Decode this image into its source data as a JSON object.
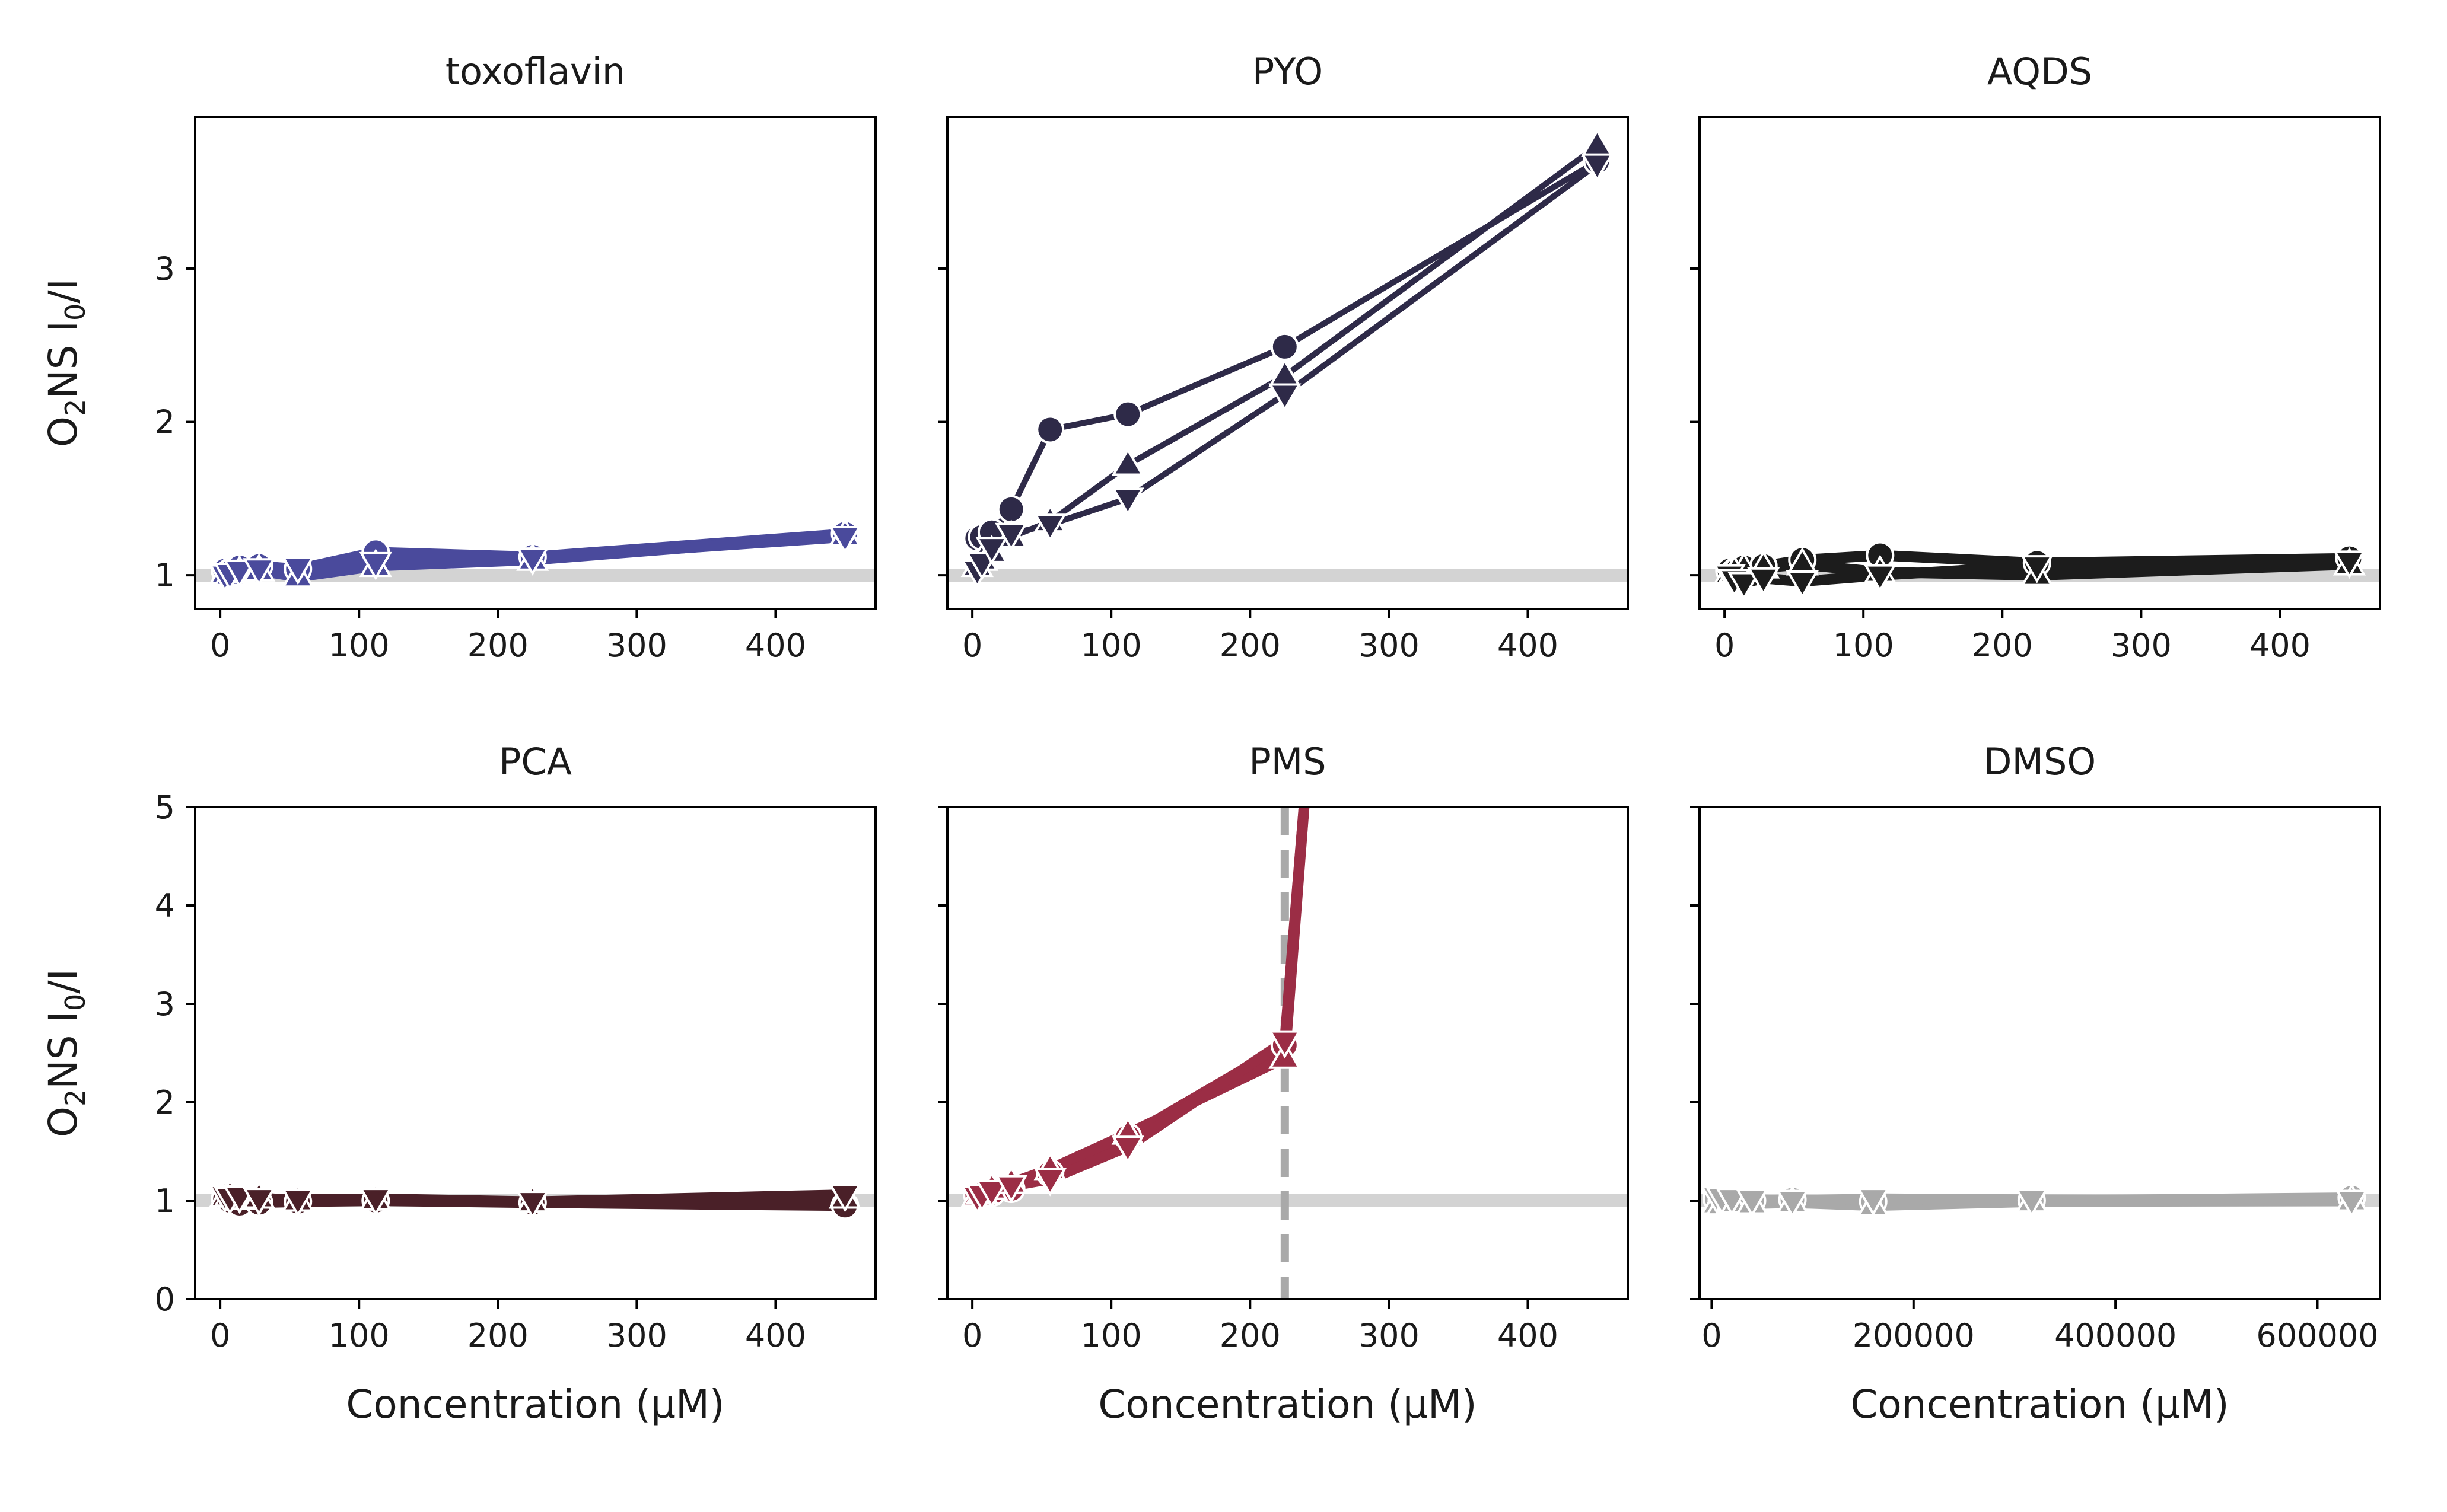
{
  "figure": {
    "ylabel_prefix": "O",
    "ylabel_sub1": "2",
    "ylabel_mid": "NS I",
    "ylabel_sub2": "0",
    "ylabel_suffix": "/I",
    "xlabel": "Concentration (μM)",
    "reference_line_y": 1,
    "reference_line_color": "#d3d3d3"
  },
  "chart_data": [
    {
      "type": "line",
      "title": "toxoflavin",
      "color": "#4a4a9c",
      "xlim": [
        -18,
        472
      ],
      "ylim": [
        0.78,
        3.99
      ],
      "xticks": [
        0,
        100,
        200,
        300,
        400
      ],
      "yticks": [
        1,
        2,
        3
      ],
      "series": [
        {
          "marker": "circle",
          "x": [
            3.5,
            7,
            14,
            28,
            56,
            112,
            225,
            450
          ],
          "y": [
            1.03,
            1.02,
            1.05,
            1.06,
            1.04,
            1.15,
            1.12,
            1.27
          ]
        },
        {
          "marker": "triangle-up",
          "x": [
            3.5,
            7,
            14,
            28,
            56,
            112,
            225,
            450
          ],
          "y": [
            1.01,
            1.0,
            1.02,
            1.03,
            0.99,
            1.06,
            1.1,
            1.26
          ]
        },
        {
          "marker": "triangle-down",
          "x": [
            3.5,
            7,
            14,
            28,
            56,
            112,
            225,
            450
          ],
          "y": [
            1.0,
            1.01,
            1.03,
            1.04,
            1.05,
            1.08,
            1.11,
            1.25
          ]
        }
      ]
    },
    {
      "type": "line",
      "title": "PYO",
      "color": "#2e2a48",
      "xlim": [
        -18,
        472
      ],
      "ylim": [
        0.78,
        3.99
      ],
      "xticks": [
        0,
        100,
        200,
        300,
        400
      ],
      "yticks": [
        1,
        2,
        3
      ],
      "series": [
        {
          "marker": "circle",
          "x": [
            3.5,
            7,
            14,
            28,
            56,
            112,
            225,
            450
          ],
          "y": [
            1.24,
            1.25,
            1.28,
            1.43,
            1.95,
            2.05,
            2.49,
            3.7
          ]
        },
        {
          "marker": "triangle-up",
          "x": [
            3.5,
            7,
            14,
            28,
            56,
            112,
            225,
            450
          ],
          "y": [
            1.06,
            1.1,
            1.15,
            1.25,
            1.35,
            1.72,
            2.3,
            3.8
          ]
        },
        {
          "marker": "triangle-down",
          "x": [
            3.5,
            7,
            14,
            28,
            56,
            112,
            225,
            450
          ],
          "y": [
            1.03,
            1.08,
            1.18,
            1.27,
            1.33,
            1.5,
            2.18,
            3.68
          ]
        }
      ]
    },
    {
      "type": "line",
      "title": "AQDS",
      "color": "#1c1c1c",
      "xlim": [
        -18,
        472
      ],
      "ylim": [
        0.78,
        3.99
      ],
      "xticks": [
        0,
        100,
        200,
        300,
        400
      ],
      "yticks": [
        1,
        2,
        3
      ],
      "series": [
        {
          "marker": "circle",
          "x": [
            3.5,
            7,
            14,
            28,
            56,
            112,
            225,
            450
          ],
          "y": [
            1.03,
            1.02,
            1.05,
            1.06,
            1.1,
            1.13,
            1.08,
            1.11
          ]
        },
        {
          "marker": "triangle-up",
          "x": [
            3.5,
            7,
            14,
            28,
            56,
            112,
            225,
            450
          ],
          "y": [
            1.01,
            1.02,
            1.04,
            1.05,
            1.07,
            1.02,
            1.0,
            1.07
          ]
        },
        {
          "marker": "triangle-down",
          "x": [
            3.5,
            7,
            14,
            28,
            56,
            112,
            225,
            450
          ],
          "y": [
            1.0,
            0.97,
            0.95,
            0.98,
            0.96,
            1.0,
            1.06,
            1.09
          ]
        }
      ]
    },
    {
      "type": "line",
      "title": "PCA",
      "color": "#4a2028",
      "xlim": [
        -18,
        472
      ],
      "ylim": [
        0,
        5
      ],
      "xticks": [
        0,
        100,
        200,
        300,
        400
      ],
      "yticks": [
        0,
        1,
        2,
        3,
        4,
        5
      ],
      "series": [
        {
          "marker": "circle",
          "x": [
            3.5,
            7,
            14,
            28,
            56,
            112,
            225,
            450
          ],
          "y": [
            1.02,
            1.0,
            0.97,
            0.98,
            0.99,
            1.0,
            0.98,
            0.95
          ]
        },
        {
          "marker": "triangle-up",
          "x": [
            3.5,
            7,
            14,
            28,
            56,
            112,
            225,
            450
          ],
          "y": [
            1.04,
            1.05,
            1.02,
            1.03,
            1.0,
            1.01,
            0.99,
            1.03
          ]
        },
        {
          "marker": "triangle-down",
          "x": [
            3.5,
            7,
            14,
            28,
            56,
            112,
            225,
            450
          ],
          "y": [
            1.05,
            1.03,
            1.04,
            1.02,
            1.01,
            1.02,
            0.99,
            1.06
          ]
        }
      ]
    },
    {
      "type": "line",
      "title": "PMS",
      "color": "#9b2d45",
      "xlim": [
        -18,
        472
      ],
      "ylim": [
        0,
        5
      ],
      "xticks": [
        0,
        100,
        200,
        300,
        400
      ],
      "yticks": [
        0,
        1,
        2,
        3,
        4,
        5
      ],
      "vline_x": 225,
      "vline_color": "#a9a9a9",
      "series": [
        {
          "marker": "circle",
          "x": [
            3.5,
            7,
            14,
            28,
            56,
            112,
            225,
            240
          ],
          "y": [
            1.06,
            1.07,
            1.08,
            1.12,
            1.28,
            1.65,
            2.58,
            5.2
          ]
        },
        {
          "marker": "triangle-up",
          "x": [
            3.5,
            7,
            14,
            28,
            56,
            112,
            225,
            240
          ],
          "y": [
            1.05,
            1.08,
            1.12,
            1.18,
            1.32,
            1.68,
            2.45,
            5.2
          ]
        },
        {
          "marker": "triangle-down",
          "x": [
            3.5,
            7,
            14,
            28,
            56,
            112,
            225,
            240
          ],
          "y": [
            1.04,
            1.06,
            1.1,
            1.15,
            1.22,
            1.55,
            2.62,
            5.2
          ]
        }
      ]
    },
    {
      "type": "line",
      "title": "DMSO",
      "color": "#a9a9a9",
      "xlim": [
        -12000,
        662000
      ],
      "ylim": [
        0,
        5
      ],
      "xticks": [
        0,
        200000,
        400000,
        600000
      ],
      "yticks": [
        0,
        1,
        2,
        3,
        4,
        5
      ],
      "series": [
        {
          "marker": "circle",
          "x": [
            5000,
            10000,
            20000,
            40000,
            80000,
            160000,
            317000,
            634000
          ],
          "y": [
            1.02,
            1.0,
            0.99,
            1.0,
            1.01,
            0.99,
            1.0,
            1.03
          ]
        },
        {
          "marker": "triangle-up",
          "x": [
            5000,
            10000,
            20000,
            40000,
            80000,
            160000,
            317000,
            634000
          ],
          "y": [
            0.97,
            0.96,
            0.98,
            0.97,
            0.98,
            0.95,
            0.99,
            1.0
          ]
        },
        {
          "marker": "triangle-down",
          "x": [
            5000,
            10000,
            20000,
            40000,
            80000,
            160000,
            317000,
            634000
          ],
          "y": [
            1.04,
            1.03,
            1.02,
            1.01,
            1.0,
            1.02,
            1.01,
            1.0
          ]
        }
      ]
    }
  ]
}
